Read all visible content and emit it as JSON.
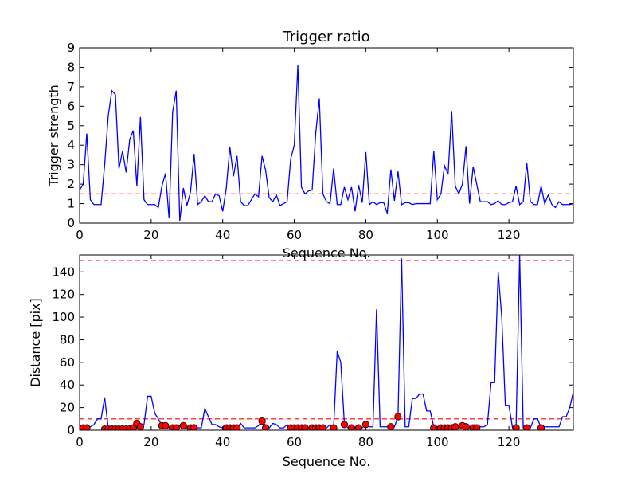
{
  "chart_data": [
    {
      "type": "line",
      "title": "Trigger ratio",
      "xlabel": "Sequence No.",
      "ylabel": "Trigger strength",
      "xlim": [
        0,
        138
      ],
      "ylim": [
        0,
        9
      ],
      "xticks": [
        0,
        20,
        40,
        60,
        80,
        100,
        120
      ],
      "yticks": [
        0,
        1,
        2,
        3,
        4,
        5,
        6,
        7,
        8,
        9
      ],
      "grid": false,
      "threshold": {
        "y": 1.5,
        "color": "#ff0000",
        "style": "dashed"
      },
      "series": [
        {
          "color": "#0000ff",
          "x": [
            0,
            1,
            2,
            3,
            4,
            5,
            6,
            7,
            8,
            9,
            10,
            11,
            12,
            13,
            14,
            15,
            16,
            17,
            18,
            19,
            20,
            21,
            22,
            23,
            24,
            25,
            26,
            27,
            28,
            29,
            30,
            31,
            32,
            33,
            34,
            35,
            36,
            37,
            38,
            39,
            40,
            41,
            42,
            43,
            44,
            45,
            46,
            47,
            48,
            49,
            50,
            51,
            52,
            53,
            54,
            55,
            56,
            57,
            58,
            59,
            60,
            61,
            62,
            63,
            64,
            65,
            66,
            67,
            68,
            69,
            70,
            71,
            72,
            73,
            74,
            75,
            76,
            77,
            78,
            79,
            80,
            81,
            82,
            83,
            84,
            85,
            86,
            87,
            88,
            89,
            90,
            91,
            92,
            93,
            94,
            95,
            96,
            97,
            98,
            99,
            100,
            101,
            102,
            103,
            104,
            105,
            106,
            107,
            108,
            109,
            110,
            111,
            112,
            113,
            114,
            115,
            116,
            117,
            118,
            119,
            120,
            121,
            122,
            123,
            124,
            125,
            126,
            127,
            128,
            129,
            130,
            131,
            132,
            133,
            134,
            135,
            136,
            137,
            138
          ],
          "y": [
            1.7,
            2.0,
            4.6,
            1.2,
            0.95,
            0.95,
            0.95,
            3.0,
            5.5,
            6.8,
            6.6,
            2.8,
            3.7,
            2.6,
            4.3,
            4.75,
            1.9,
            5.45,
            1.2,
            0.95,
            0.95,
            0.95,
            0.8,
            1.9,
            2.55,
            0.25,
            5.7,
            6.8,
            0.1,
            1.8,
            0.9,
            1.6,
            3.55,
            0.95,
            1.1,
            1.4,
            1.1,
            1.1,
            1.5,
            1.4,
            0.6,
            1.8,
            3.9,
            2.4,
            3.45,
            1.1,
            0.9,
            0.9,
            1.2,
            1.5,
            1.35,
            3.45,
            2.7,
            1.3,
            1.1,
            1.45,
            0.9,
            1.0,
            1.1,
            3.3,
            4.0,
            8.1,
            1.85,
            1.5,
            1.65,
            1.7,
            4.6,
            6.4,
            1.5,
            1.1,
            1.0,
            2.8,
            0.95,
            0.95,
            1.85,
            1.2,
            1.85,
            0.6,
            1.95,
            1.05,
            3.65,
            0.95,
            1.1,
            0.95,
            1.05,
            1.05,
            0.5,
            2.75,
            1.15,
            2.65,
            0.95,
            1.05,
            1.05,
            0.95,
            1.0,
            1.0,
            1.0,
            1.0,
            1.0,
            3.7,
            1.2,
            1.5,
            2.95,
            2.5,
            5.75,
            1.9,
            1.5,
            2.0,
            3.95,
            1.0,
            2.9,
            2.0,
            1.1,
            1.1,
            1.1,
            0.95,
            1.0,
            1.15,
            0.95,
            0.95,
            1.05,
            1.1,
            1.9,
            0.95,
            1.1,
            3.1,
            1.1,
            0.95,
            0.95,
            1.9,
            1.0,
            1.45,
            0.95,
            0.8,
            1.1,
            0.95,
            0.95,
            0.95,
            1.0
          ]
        }
      ]
    },
    {
      "type": "line",
      "xlabel": "Sequence No.",
      "ylabel": "Distance [pix]",
      "xlim": [
        0,
        138
      ],
      "ylim": [
        0,
        155
      ],
      "xticks": [
        0,
        20,
        40,
        60,
        80,
        100,
        120
      ],
      "yticks": [
        0,
        20,
        40,
        60,
        80,
        100,
        120,
        140
      ],
      "grid": false,
      "thresholds": [
        {
          "y": 10,
          "color": "#ff0000",
          "style": "dashed"
        },
        {
          "y": 150,
          "color": "#ff0000",
          "style": "dashed"
        }
      ],
      "series": [
        {
          "color": "#0000ff",
          "x": [
            0,
            1,
            2,
            3,
            4,
            5,
            6,
            7,
            8,
            9,
            10,
            11,
            12,
            13,
            14,
            15,
            16,
            17,
            18,
            19,
            20,
            21,
            22,
            23,
            24,
            25,
            26,
            27,
            28,
            29,
            30,
            31,
            32,
            33,
            34,
            35,
            36,
            37,
            38,
            39,
            40,
            41,
            42,
            43,
            44,
            45,
            46,
            47,
            48,
            49,
            50,
            51,
            52,
            53,
            54,
            55,
            56,
            57,
            58,
            59,
            60,
            61,
            62,
            63,
            64,
            65,
            66,
            67,
            68,
            69,
            70,
            71,
            72,
            73,
            74,
            75,
            76,
            77,
            78,
            79,
            80,
            81,
            82,
            83,
            84,
            85,
            86,
            87,
            88,
            89,
            90,
            91,
            92,
            93,
            94,
            95,
            96,
            97,
            98,
            99,
            100,
            101,
            102,
            103,
            104,
            105,
            106,
            107,
            108,
            109,
            110,
            111,
            112,
            113,
            114,
            115,
            116,
            117,
            118,
            119,
            120,
            121,
            122,
            123,
            124,
            125,
            126,
            127,
            128,
            129,
            130,
            131,
            132,
            133,
            134,
            135,
            136,
            137,
            138
          ],
          "y": [
            2,
            2,
            2,
            3,
            5,
            10,
            10,
            29,
            2,
            1,
            1,
            1,
            1,
            1,
            1,
            2,
            6,
            3,
            5,
            30,
            30,
            15,
            10,
            4,
            4,
            2,
            2,
            2,
            4,
            2,
            2,
            2,
            5,
            2,
            2,
            19,
            12,
            5,
            5,
            3,
            2,
            2,
            2,
            2,
            2,
            6,
            2,
            2,
            2,
            2,
            4,
            8,
            4,
            2,
            6,
            5,
            2,
            2,
            5,
            2,
            2,
            2,
            2,
            2,
            2,
            2,
            2,
            2,
            2,
            2,
            5,
            2,
            70,
            60,
            6,
            2,
            2,
            2,
            2,
            2,
            5,
            3,
            3,
            107,
            3,
            3,
            3,
            3,
            3,
            12,
            152,
            3,
            3,
            28,
            28,
            32,
            32,
            17,
            17,
            3,
            3,
            3,
            3,
            3,
            3,
            3,
            3,
            3,
            3,
            3,
            3,
            3,
            3,
            3,
            5,
            42,
            42,
            140,
            100,
            22,
            22,
            2,
            2,
            155,
            2,
            2,
            2,
            10,
            10,
            2,
            3,
            3,
            3,
            3,
            3,
            12,
            12,
            20,
            34
          ]
        }
      ],
      "markers": {
        "color": "#ff0000",
        "x": [
          0,
          1,
          2,
          7,
          8,
          9,
          10,
          11,
          12,
          13,
          14,
          15,
          16,
          17,
          23,
          24,
          26,
          27,
          29,
          31,
          32,
          41,
          42,
          43,
          44,
          51,
          52,
          59,
          60,
          61,
          62,
          63,
          65,
          66,
          67,
          68,
          71,
          74,
          76,
          78,
          80,
          87,
          89,
          99,
          101,
          102,
          103,
          104,
          105,
          107,
          108,
          110,
          111,
          122,
          125,
          129
        ],
        "y": [
          1,
          2,
          2,
          1,
          1,
          1,
          1,
          1,
          1,
          1,
          1,
          2,
          6,
          3,
          4,
          4,
          2,
          2,
          4,
          2,
          2,
          2,
          2,
          2,
          2,
          8,
          2,
          2,
          2,
          2,
          2,
          2,
          2,
          2,
          2,
          2,
          2,
          5,
          2,
          2,
          5,
          3,
          12,
          2,
          2,
          2,
          2,
          2,
          3,
          4,
          3,
          2,
          2,
          2,
          2,
          2
        ]
      }
    }
  ]
}
